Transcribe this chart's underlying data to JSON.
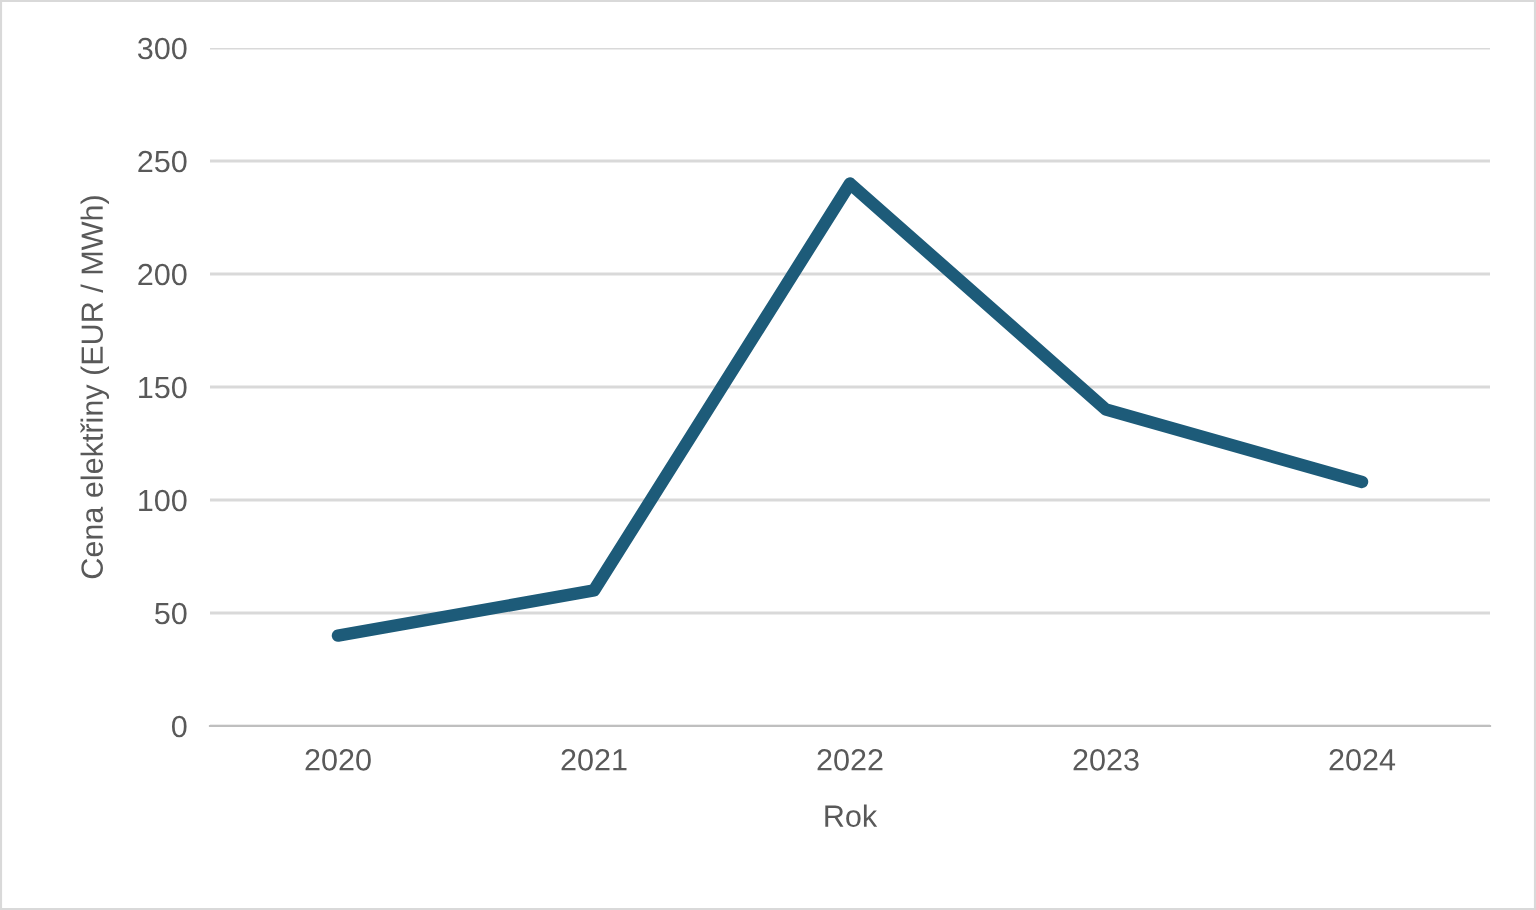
{
  "chart_data": {
    "type": "line",
    "xlabel": "Rok",
    "ylabel": "Cena elektřiny (EUR / MWh)",
    "categories": [
      "2020",
      "2021",
      "2022",
      "2023",
      "2024"
    ],
    "series": [
      {
        "color": "#1d5b79",
        "values": [
          40,
          60,
          240,
          140,
          108
        ]
      }
    ],
    "ylim": [
      0,
      300
    ],
    "yticks": [
      0,
      50,
      100,
      150,
      200,
      250,
      300
    ],
    "grid": "y",
    "legend": false,
    "marker": "none",
    "line_style": "solid"
  }
}
